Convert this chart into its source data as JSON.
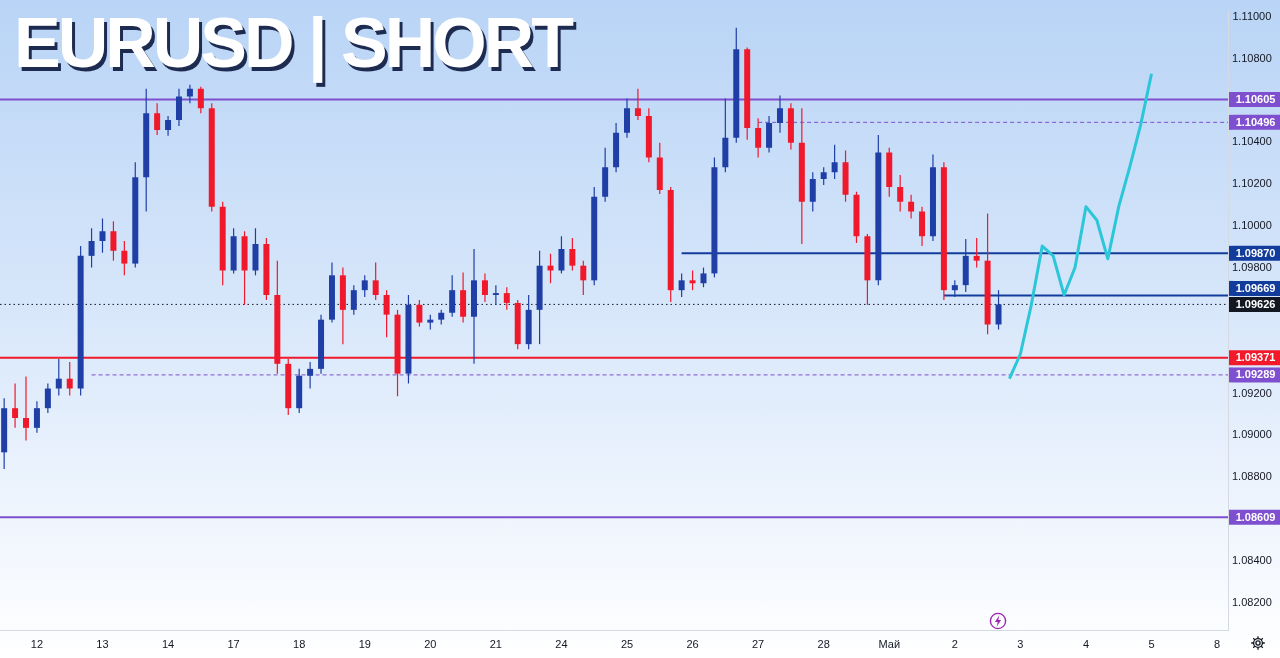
{
  "chart_data": {
    "type": "candlestick",
    "title": "EURUSD | SHORT",
    "legend": "right",
    "categories": [
      null,
      null,
      null,
      "12",
      null,
      null,
      null,
      null,
      null,
      "13",
      null,
      null,
      null,
      null,
      null,
      "14",
      null,
      null,
      null,
      null,
      null,
      "17",
      null,
      null,
      null,
      null,
      null,
      "18",
      null,
      null,
      null,
      null,
      null,
      "19",
      null,
      null,
      null,
      null,
      null,
      "20",
      null,
      null,
      null,
      null,
      null,
      "21",
      null,
      null,
      null,
      null,
      null,
      "24",
      null,
      null,
      null,
      null,
      null,
      "25",
      null,
      null,
      null,
      null,
      null,
      "26",
      null,
      null,
      null,
      null,
      null,
      "27",
      null,
      null,
      null,
      null,
      null,
      "28",
      null,
      null,
      null,
      null,
      null,
      "Май",
      null,
      null,
      null,
      null,
      null,
      "2",
      null,
      null,
      null,
      null,
      null,
      "3",
      null,
      null,
      null,
      null,
      null,
      "4",
      null,
      null,
      null,
      null,
      null,
      "5",
      null,
      null,
      null,
      null,
      null,
      "8",
      null
    ],
    "ohlc": [
      [
        1.08919,
        1.09177,
        1.08839,
        1.0913
      ],
      [
        1.0913,
        1.09248,
        1.09036,
        1.09083
      ],
      [
        1.09083,
        1.09281,
        1.08975,
        1.09036
      ],
      [
        1.09036,
        1.09163,
        1.09013,
        1.0913
      ],
      [
        1.0913,
        1.09248,
        1.09107,
        1.09224
      ],
      [
        1.09224,
        1.09365,
        1.09191,
        1.09271
      ],
      [
        1.09271,
        1.09351,
        1.09191,
        1.09224
      ],
      [
        1.09224,
        1.09905,
        1.09191,
        1.09858
      ],
      [
        1.09858,
        1.0999,
        1.09802,
        1.09929
      ],
      [
        1.09929,
        1.10037,
        1.09873,
        1.09976
      ],
      [
        1.09976,
        1.10023,
        1.09835,
        1.09882
      ],
      [
        1.09882,
        1.09929,
        1.09765,
        1.09821
      ],
      [
        1.09821,
        1.10305,
        1.09802,
        1.10234
      ],
      [
        1.10234,
        1.10657,
        1.1007,
        1.1054
      ],
      [
        1.1054,
        1.10587,
        1.10436,
        1.1046
      ],
      [
        1.1046,
        1.10526,
        1.10432,
        1.10507
      ],
      [
        1.10507,
        1.10657,
        1.10479,
        1.1062
      ],
      [
        1.1062,
        1.10676,
        1.10587,
        1.10657
      ],
      [
        1.10657,
        1.10666,
        1.1054,
        1.10563
      ],
      [
        1.10563,
        1.10587,
        1.1007,
        1.10093
      ],
      [
        1.10093,
        1.10117,
        1.09718,
        1.09788
      ],
      [
        1.09788,
        1.0999,
        1.09774,
        1.09952
      ],
      [
        1.09952,
        1.09976,
        1.09624,
        1.09788
      ],
      [
        1.09788,
        1.0999,
        1.09765,
        1.09915
      ],
      [
        1.09915,
        1.09943,
        1.09647,
        1.09671
      ],
      [
        1.09671,
        1.09835,
        1.09295,
        1.09342
      ],
      [
        1.09342,
        1.09365,
        1.09097,
        1.0913
      ],
      [
        1.0913,
        1.09318,
        1.09107,
        1.09285
      ],
      [
        1.09285,
        1.09351,
        1.09224,
        1.09318
      ],
      [
        1.09318,
        1.09577,
        1.09295,
        1.09553
      ],
      [
        1.09553,
        1.09826,
        1.09539,
        1.09765
      ],
      [
        1.09765,
        1.09802,
        1.09436,
        1.096
      ],
      [
        1.096,
        1.09718,
        1.09577,
        1.09694
      ],
      [
        1.09694,
        1.09765,
        1.09661,
        1.09741
      ],
      [
        1.09741,
        1.09826,
        1.09647,
        1.09671
      ],
      [
        1.09671,
        1.09694,
        1.09469,
        1.09577
      ],
      [
        1.09577,
        1.096,
        1.09187,
        1.09295
      ],
      [
        1.09295,
        1.09671,
        1.09248,
        1.09624
      ],
      [
        1.09624,
        1.09647,
        1.0952,
        1.09539
      ],
      [
        1.09539,
        1.09577,
        1.09506,
        1.09553
      ],
      [
        1.09553,
        1.096,
        1.0953,
        1.09586
      ],
      [
        1.09586,
        1.09765,
        1.09567,
        1.09694
      ],
      [
        1.09694,
        1.09779,
        1.09539,
        1.09567
      ],
      [
        1.09567,
        1.09891,
        1.09342,
        1.09741
      ],
      [
        1.09741,
        1.09774,
        1.09638,
        1.09671
      ],
      [
        1.09671,
        1.09718,
        1.09624,
        1.0968
      ],
      [
        1.0968,
        1.09708,
        1.096,
        1.09633
      ],
      [
        1.09633,
        1.09647,
        1.09412,
        1.09436
      ],
      [
        1.09436,
        1.09671,
        1.09412,
        1.096
      ],
      [
        1.096,
        1.09882,
        1.09436,
        1.09811
      ],
      [
        1.09811,
        1.09868,
        1.09727,
        1.09788
      ],
      [
        1.09788,
        1.09952,
        1.09774,
        1.09891
      ],
      [
        1.09891,
        1.09943,
        1.09788,
        1.09811
      ],
      [
        1.09811,
        1.09835,
        1.09671,
        1.09741
      ],
      [
        1.09741,
        1.10187,
        1.09718,
        1.1014
      ],
      [
        1.1014,
        1.10375,
        1.10117,
        1.10281
      ],
      [
        1.10281,
        1.10493,
        1.10258,
        1.10446
      ],
      [
        1.10446,
        1.1061,
        1.10422,
        1.10563
      ],
      [
        1.10563,
        1.10657,
        1.10507,
        1.10526
      ],
      [
        1.10526,
        1.10563,
        1.10305,
        1.10328
      ],
      [
        1.10328,
        1.10399,
        1.10154,
        1.10173
      ],
      [
        1.10173,
        1.10187,
        1.09638,
        1.09694
      ],
      [
        1.09694,
        1.09774,
        1.09661,
        1.09741
      ],
      [
        1.09741,
        1.09788,
        1.09694,
        1.09727
      ],
      [
        1.09727,
        1.09802,
        1.09708,
        1.09774
      ],
      [
        1.09774,
        1.10328,
        1.09755,
        1.10281
      ],
      [
        1.10281,
        1.1061,
        1.10258,
        1.10422
      ],
      [
        1.10422,
        1.10948,
        1.10399,
        1.10845
      ],
      [
        1.10845,
        1.10854,
        1.10413,
        1.10469
      ],
      [
        1.10469,
        1.10516,
        1.10328,
        1.10375
      ],
      [
        1.10375,
        1.10526,
        1.10352,
        1.10493
      ],
      [
        1.10493,
        1.10624,
        1.10446,
        1.10563
      ],
      [
        1.10563,
        1.10587,
        1.10366,
        1.10399
      ],
      [
        1.10399,
        1.10563,
        1.09915,
        1.10117
      ],
      [
        1.10117,
        1.10258,
        1.1007,
        1.10225
      ],
      [
        1.10225,
        1.10281,
        1.10197,
        1.10258
      ],
      [
        1.10258,
        1.10389,
        1.10225,
        1.10305
      ],
      [
        1.10305,
        1.10361,
        1.10117,
        1.1015
      ],
      [
        1.1015,
        1.10164,
        1.0992,
        1.09952
      ],
      [
        1.09952,
        1.09962,
        1.09624,
        1.09741
      ],
      [
        1.09741,
        1.10436,
        1.09718,
        1.10352
      ],
      [
        1.10352,
        1.10375,
        1.1014,
        1.10187
      ],
      [
        1.10187,
        1.10244,
        1.1007,
        1.10117
      ],
      [
        1.10117,
        1.1015,
        1.10037,
        1.1007
      ],
      [
        1.1007,
        1.10093,
        1.09905,
        1.09952
      ],
      [
        1.09952,
        1.10342,
        1.09929,
        1.10281
      ],
      [
        1.10281,
        1.10305,
        1.09647,
        1.09694
      ],
      [
        1.09694,
        1.09741,
        1.09661,
        1.09718
      ],
      [
        1.09718,
        1.09938,
        1.09685,
        1.09858
      ],
      [
        1.09858,
        1.09943,
        1.09802,
        1.09835
      ],
      [
        1.09835,
        1.1006,
        1.09483,
        1.0953
      ],
      [
        1.0953,
        1.09694,
        1.09506,
        1.09626
      ],
      null,
      null,
      null,
      null,
      null,
      null,
      null,
      null,
      null,
      null,
      null,
      null,
      null,
      null,
      null,
      null,
      null,
      null,
      null,
      null,
      null
    ],
    "colors": [
      "#1f3fa6",
      "#f0192c",
      "#f0192c",
      "#1f3fa6",
      "#1f3fa6",
      "#1f3fa6",
      "#f0192c",
      "#1f3fa6",
      "#1f3fa6",
      "#1f3fa6",
      "#f0192c",
      "#f0192c",
      "#1f3fa6",
      "#1f3fa6",
      "#f0192c",
      "#1f3fa6",
      "#1f3fa6",
      "#1f3fa6",
      "#f0192c",
      "#f0192c",
      "#f0192c",
      "#1f3fa6",
      "#f0192c",
      "#1f3fa6",
      "#f0192c",
      "#f0192c",
      "#f0192c",
      "#1f3fa6",
      "#1f3fa6",
      "#1f3fa6",
      "#1f3fa6",
      "#f0192c",
      "#1f3fa6",
      "#1f3fa6",
      "#f0192c",
      "#f0192c",
      "#f0192c",
      "#1f3fa6",
      "#f0192c",
      "#1f3fa6",
      "#1f3fa6",
      "#1f3fa6",
      "#f0192c",
      "#1f3fa6",
      "#f0192c",
      "#1f3fa6",
      "#f0192c",
      "#f0192c",
      "#1f3fa6",
      "#1f3fa6",
      "#f0192c",
      "#1f3fa6",
      "#f0192c",
      "#f0192c",
      "#1f3fa6",
      "#1f3fa6",
      "#1f3fa6",
      "#1f3fa6",
      "#f0192c",
      "#f0192c",
      "#f0192c",
      "#f0192c",
      "#1f3fa6",
      "#f0192c",
      "#1f3fa6",
      "#1f3fa6",
      "#1f3fa6",
      "#1f3fa6",
      "#f0192c",
      "#f0192c",
      "#1f3fa6",
      "#1f3fa6",
      "#f0192c",
      "#f0192c",
      "#1f3fa6",
      "#1f3fa6",
      "#1f3fa6",
      "#f0192c",
      "#f0192c",
      "#f0192c",
      "#1f3fa6",
      "#f0192c",
      "#f0192c",
      "#f0192c",
      "#f0192c",
      "#1f3fa6",
      "#f0192c",
      "#1f3fa6",
      "#1f3fa6",
      "#f0192c",
      "#f0192c",
      "#1f3fa6",
      null,
      null,
      null,
      null,
      null,
      null,
      null,
      null,
      null,
      null,
      null,
      null,
      null,
      null,
      null,
      null,
      null,
      null,
      null,
      null,
      null
    ],
    "series": [
      {
        "type": "line",
        "color": "#2bc6d8",
        "values": [
          null,
          null,
          null,
          null,
          null,
          null,
          null,
          null,
          null,
          null,
          null,
          null,
          null,
          null,
          null,
          null,
          null,
          null,
          null,
          null,
          null,
          null,
          null,
          null,
          null,
          null,
          null,
          null,
          null,
          null,
          null,
          null,
          null,
          null,
          null,
          null,
          null,
          null,
          null,
          null,
          null,
          null,
          null,
          null,
          null,
          null,
          null,
          null,
          null,
          null,
          null,
          null,
          null,
          null,
          null,
          null,
          null,
          null,
          null,
          null,
          null,
          null,
          null,
          null,
          null,
          null,
          null,
          null,
          null,
          null,
          null,
          null,
          null,
          null,
          null,
          null,
          null,
          null,
          null,
          null,
          null,
          null,
          null,
          null,
          null,
          null,
          null,
          null,
          null,
          null,
          null,
          null,
          1.09271,
          1.09389,
          1.09624,
          1.09905,
          1.09858,
          1.09671,
          1.09802,
          1.10093,
          1.10028,
          1.09844,
          1.10093,
          1.10281,
          1.10483,
          1.10728,
          null,
          null,
          null,
          null,
          null,
          null,
          null
        ]
      },
      {
        "type": "line",
        "name": "1.10496",
        "color": "#7e4fcf",
        "line_style": "dashed",
        "values": [
          null,
          null,
          null,
          null,
          null,
          null,
          null,
          null,
          null,
          null,
          null,
          null,
          null,
          null,
          null,
          null,
          null,
          null,
          null,
          null,
          null,
          null,
          null,
          null,
          null,
          null,
          null,
          null,
          null,
          null,
          null,
          null,
          null,
          null,
          null,
          null,
          null,
          null,
          null,
          null,
          null,
          null,
          null,
          null,
          null,
          null,
          null,
          null,
          null,
          null,
          null,
          null,
          null,
          null,
          null,
          null,
          null,
          null,
          null,
          null,
          null,
          null,
          null,
          null,
          null,
          null,
          null,
          null,
          null,
          1.10496,
          1.10496,
          1.10496,
          1.10496,
          1.10496,
          1.10496,
          1.10496,
          1.10496,
          1.10496,
          1.10496,
          1.10496,
          1.10496,
          1.10496,
          1.10496,
          1.10496,
          1.10496,
          1.10496,
          1.10496,
          1.10496,
          1.10496,
          1.10496,
          1.10496,
          1.10496,
          1.10496,
          1.10496,
          1.10496,
          1.10496,
          1.10496,
          1.10496,
          1.10496,
          1.10496,
          1.10496,
          1.10496,
          1.10496,
          1.10496,
          1.10496,
          1.10496,
          1.10496,
          1.10496,
          1.10496,
          1.10496,
          1.10496,
          1.10496,
          1.10496
        ]
      },
      {
        "type": "line",
        "name": "1.09870",
        "color": "#123c9c",
        "values": [
          null,
          null,
          null,
          null,
          null,
          null,
          null,
          null,
          null,
          null,
          null,
          null,
          null,
          null,
          null,
          null,
          null,
          null,
          null,
          null,
          null,
          null,
          null,
          null,
          null,
          null,
          null,
          null,
          null,
          null,
          null,
          null,
          null,
          null,
          null,
          null,
          null,
          null,
          null,
          null,
          null,
          null,
          null,
          null,
          null,
          null,
          null,
          null,
          null,
          null,
          null,
          null,
          null,
          null,
          null,
          null,
          null,
          null,
          null,
          null,
          null,
          null,
          1.0987,
          1.0987,
          1.0987,
          1.0987,
          1.0987,
          1.0987,
          1.0987,
          1.0987,
          1.0987,
          1.0987,
          1.0987,
          1.0987,
          1.0987,
          1.0987,
          1.0987,
          1.0987,
          1.0987,
          1.0987,
          1.0987,
          1.0987,
          1.0987,
          1.0987,
          1.0987,
          1.0987,
          1.0987,
          1.0987,
          1.0987,
          1.0987,
          1.0987,
          1.0987,
          1.0987,
          1.0987,
          1.0987,
          1.0987,
          1.0987,
          1.0987,
          1.0987,
          1.0987,
          1.0987,
          1.0987,
          1.0987,
          1.0987,
          1.0987,
          1.0987,
          1.0987,
          1.0987,
          1.0987,
          1.0987,
          1.0987,
          1.0987,
          1.0987
        ]
      },
      {
        "type": "line",
        "name": "1.09669",
        "color": "#123c9c",
        "values": [
          null,
          null,
          null,
          null,
          null,
          null,
          null,
          null,
          null,
          null,
          null,
          null,
          null,
          null,
          null,
          null,
          null,
          null,
          null,
          null,
          null,
          null,
          null,
          null,
          null,
          null,
          null,
          null,
          null,
          null,
          null,
          null,
          null,
          null,
          null,
          null,
          null,
          null,
          null,
          null,
          null,
          null,
          null,
          null,
          null,
          null,
          null,
          null,
          null,
          null,
          null,
          null,
          null,
          null,
          null,
          null,
          null,
          null,
          null,
          null,
          null,
          null,
          null,
          null,
          null,
          null,
          null,
          null,
          null,
          null,
          null,
          null,
          null,
          null,
          null,
          null,
          null,
          null,
          null,
          null,
          null,
          null,
          null,
          null,
          null,
          null,
          1.09669,
          1.09669,
          1.09669,
          1.09669,
          1.09669,
          1.09669,
          1.09669,
          1.09669,
          1.09669,
          1.09669,
          1.09669,
          1.09669,
          1.09669,
          1.09669,
          1.09669,
          1.09669,
          1.09669,
          1.09669,
          1.09669,
          1.09669,
          1.09669,
          1.09669,
          1.09669,
          1.09669,
          1.09669,
          1.09669,
          1.09669
        ]
      },
      {
        "type": "line",
        "name": "1.09289",
        "color": "#7e4fcf",
        "line_style": "dashed",
        "values": [
          null,
          null,
          null,
          null,
          null,
          null,
          null,
          null,
          1.09289,
          1.09289,
          1.09289,
          1.09289,
          1.09289,
          1.09289,
          1.09289,
          1.09289,
          1.09289,
          1.09289,
          1.09289,
          1.09289,
          1.09289,
          1.09289,
          1.09289,
          1.09289,
          1.09289,
          1.09289,
          1.09289,
          1.09289,
          1.09289,
          1.09289,
          1.09289,
          1.09289,
          1.09289,
          1.09289,
          1.09289,
          1.09289,
          1.09289,
          1.09289,
          1.09289,
          1.09289,
          1.09289,
          1.09289,
          1.09289,
          1.09289,
          1.09289,
          1.09289,
          1.09289,
          1.09289,
          1.09289,
          1.09289,
          1.09289,
          1.09289,
          1.09289,
          1.09289,
          1.09289,
          1.09289,
          1.09289,
          1.09289,
          1.09289,
          1.09289,
          1.09289,
          1.09289,
          1.09289,
          1.09289,
          1.09289,
          1.09289,
          1.09289,
          1.09289,
          1.09289,
          1.09289,
          1.09289,
          1.09289,
          1.09289,
          1.09289,
          1.09289,
          1.09289,
          1.09289,
          1.09289,
          1.09289,
          1.09289,
          1.09289,
          1.09289,
          1.09289,
          1.09289,
          1.09289,
          1.09289,
          1.09289,
          1.09289,
          1.09289,
          1.09289,
          1.09289,
          1.09289,
          1.09289,
          1.09289,
          1.09289,
          1.09289,
          1.09289,
          1.09289,
          1.09289,
          1.09289,
          1.09289,
          1.09289,
          1.09289,
          1.09289,
          1.09289,
          1.09289,
          1.09289,
          1.09289,
          1.09289,
          1.09289,
          1.09289,
          1.09289,
          1.09289
        ]
      }
    ],
    "ref_lines": [
      {
        "axis": "y",
        "value": 1.10605,
        "label": "1.10605",
        "color": "#7e4fcf"
      },
      {
        "axis": "y",
        "value": 1.09626,
        "label": "1.09626",
        "color": "#131722",
        "line_style": "dotted"
      },
      {
        "axis": "y",
        "value": 1.09371,
        "label": "1.09371",
        "color": "#f21a2a"
      },
      {
        "axis": "y",
        "value": 1.08609,
        "label": "1.08609",
        "color": "#7e4fcf"
      }
    ],
    "ylim": [
      1.0807,
      1.1103
    ],
    "yticks": [
      {
        "value": 1.082,
        "label": "1.08200"
      },
      {
        "value": 1.084,
        "label": "1.08400"
      },
      {
        "value": 1.088,
        "label": "1.08800"
      },
      {
        "value": 1.09,
        "label": "1.09000"
      },
      {
        "value": 1.092,
        "label": "1.09200"
      },
      {
        "value": 1.098,
        "label": "1.09800"
      },
      {
        "value": 1.1,
        "label": "1.10000"
      },
      {
        "value": 1.102,
        "label": "1.10200"
      },
      {
        "value": 1.104,
        "label": "1.10400"
      },
      {
        "value": 1.108,
        "label": "1.10800"
      },
      {
        "value": 1.11,
        "label": "1.11000"
      }
    ]
  }
}
